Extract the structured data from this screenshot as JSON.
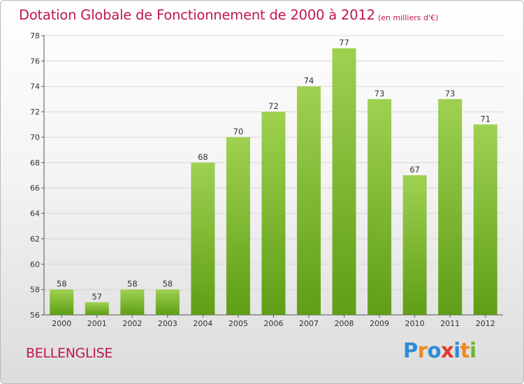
{
  "chart_data": {
    "type": "bar",
    "title": "Dotation Globale de Fonctionnement de 2000 à 2012",
    "subtitle": "(en milliers d'€)",
    "categories": [
      "2000",
      "2001",
      "2002",
      "2003",
      "2004",
      "2005",
      "2006",
      "2007",
      "2008",
      "2009",
      "2010",
      "2011",
      "2012"
    ],
    "values": [
      58,
      57,
      58,
      58,
      68,
      70,
      72,
      74,
      77,
      73,
      67,
      73,
      71
    ],
    "data_labels": [
      "58",
      "57",
      "58",
      "58",
      "68",
      "70",
      "72",
      "74",
      "77",
      "73",
      "67",
      "73",
      "71"
    ],
    "yticks": [
      "56",
      "58",
      "60",
      "62",
      "64",
      "66",
      "68",
      "70",
      "72",
      "74",
      "76",
      "78"
    ],
    "ylim": [
      56,
      78
    ],
    "grid": true,
    "colors": {
      "bar_top": "#9fd151",
      "bar_bottom": "#5f9e16",
      "grid": "#d6d6d6",
      "text_accent": "#c0174b"
    }
  },
  "place_name": "BELLENGLISE",
  "logo": {
    "letters": [
      "P",
      "r",
      "o",
      "x",
      "i",
      "t",
      "i"
    ],
    "colors": [
      "#2e8bd9",
      "#f08a1c",
      "#2e8bd9",
      "#e8352b",
      "#2e8bd9",
      "#f08a1c",
      "#6bb52b"
    ]
  }
}
